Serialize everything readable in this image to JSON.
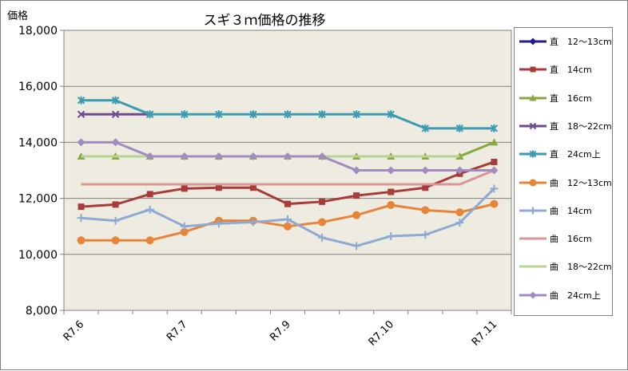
{
  "chart_data": {
    "type": "line",
    "title": "スギ３ｍ価格の推移",
    "y_unit": "価格",
    "xlabel": "",
    "ylabel": "",
    "ylim": [
      8000,
      18000
    ],
    "yticks": [
      "8,000",
      "10,000",
      "12,000",
      "14,000",
      "16,000",
      "18,000"
    ],
    "ytick_values": [
      8000,
      10000,
      12000,
      14000,
      16000,
      18000
    ],
    "grid": true,
    "legend_position": "right",
    "x_count": 13,
    "x_tick_labels": [
      {
        "index": 0,
        "label": "R7.6"
      },
      {
        "index": 3,
        "label": "R7.7"
      },
      {
        "index": 6,
        "label": "R7.9"
      },
      {
        "index": 9,
        "label": "R7.10"
      },
      {
        "index": 12,
        "label": "R7.11"
      }
    ],
    "series": [
      {
        "name": "直　12～13cm",
        "color": "#1f1f8f",
        "marker": "diamond",
        "values": [
          null,
          null,
          null,
          null,
          null,
          null,
          null,
          null,
          null,
          null,
          null,
          null,
          null
        ]
      },
      {
        "name": "直　14cm",
        "color": "#a83c3a",
        "marker": "square",
        "values": [
          11700,
          11780,
          12150,
          12350,
          12380,
          12380,
          11800,
          11880,
          12100,
          12230,
          12380,
          12880,
          13300
        ]
      },
      {
        "name": "直　16cm",
        "color": "#86a83e",
        "marker": "triangle",
        "values": [
          13500,
          13500,
          13500,
          13500,
          13500,
          13500,
          13500,
          13500,
          13500,
          13500,
          13500,
          13500,
          14000
        ]
      },
      {
        "name": "直　18～22cm",
        "color": "#6c4a8e",
        "marker": "x",
        "values": [
          15000,
          15000,
          15000,
          null,
          null,
          null,
          null,
          null,
          null,
          null,
          null,
          null,
          null
        ]
      },
      {
        "name": "直　24cm上",
        "color": "#3c9bb0",
        "marker": "star",
        "values": [
          15500,
          15500,
          15000,
          15000,
          15000,
          15000,
          15000,
          15000,
          15000,
          15000,
          14500,
          14500,
          14500
        ]
      },
      {
        "name": "曲　12～13cm",
        "color": "#e8843a",
        "marker": "circle",
        "values": [
          10500,
          10500,
          10500,
          10800,
          11200,
          11200,
          11000,
          11150,
          11400,
          11760,
          11580,
          11500,
          11800
        ]
      },
      {
        "name": "曲　14cm",
        "color": "#8ea9d4",
        "marker": "plus",
        "values": [
          11300,
          11200,
          11600,
          11000,
          11100,
          11150,
          11250,
          10600,
          10300,
          10650,
          10700,
          11130,
          12350
        ]
      },
      {
        "name": "曲　16cm",
        "color": "#d99694",
        "marker": "none",
        "values": [
          12500,
          12500,
          12500,
          12500,
          12500,
          12500,
          12500,
          12500,
          12500,
          12500,
          12500,
          12500,
          13000
        ]
      },
      {
        "name": "曲　18～22cm",
        "color": "#b9d492",
        "marker": "none",
        "values": [
          13500,
          13500,
          13500,
          13500,
          13500,
          13500,
          13500,
          13500,
          13500,
          13500,
          13500,
          13500,
          null
        ]
      },
      {
        "name": "曲　24cm上",
        "color": "#a08cc0",
        "marker": "diamond",
        "values": [
          14000,
          14000,
          13500,
          13500,
          13500,
          13500,
          13500,
          13500,
          13000,
          13000,
          13000,
          13000,
          13000
        ]
      }
    ]
  }
}
